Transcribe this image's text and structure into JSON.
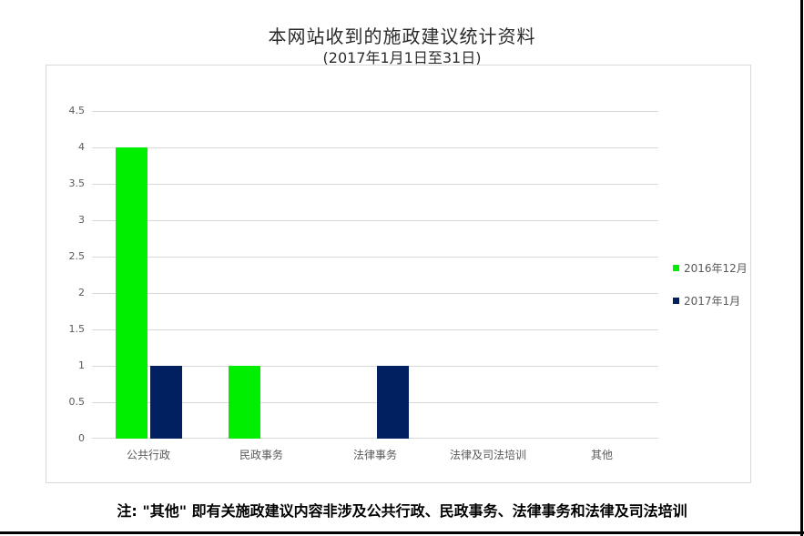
{
  "chart": {
    "title": "本网站收到的施政建议统计资料",
    "subtitle": "(2017年1月1日至31日)"
  },
  "note": {
    "text": "注: \"其他\" 即有关施政建议内容非涉及公共行政、民政事务、法律事务和法律及司法培训"
  },
  "colors": {
    "series1": "#00ee00",
    "series2": "#002060",
    "gridline": "#d9d9d9",
    "chart_border": "#d9d9d9",
    "axis_text": "#595959",
    "frame": "#000000"
  },
  "chart_data": {
    "type": "bar",
    "title": "本网站收到的施政建议统计资料",
    "subtitle": "(2017年1月1日至31日)",
    "categories": [
      "公共行政",
      "民政事务",
      "法律事务",
      "法律及司法培训",
      "其他"
    ],
    "series": [
      {
        "name": "2016年12月",
        "color": "#00ee00",
        "values": [
          4,
          1,
          0,
          0,
          0
        ]
      },
      {
        "name": "2017年1月",
        "color": "#002060",
        "values": [
          1,
          0,
          1,
          0,
          0
        ]
      }
    ],
    "ylim": [
      0,
      4.5
    ],
    "ytick_step": 0.5,
    "yticks": [
      "0",
      "0.5",
      "1",
      "1.5",
      "2",
      "2.5",
      "3",
      "3.5",
      "4",
      "4.5"
    ],
    "grid": true,
    "legend_position": "right",
    "xlabel": "",
    "ylabel": ""
  }
}
